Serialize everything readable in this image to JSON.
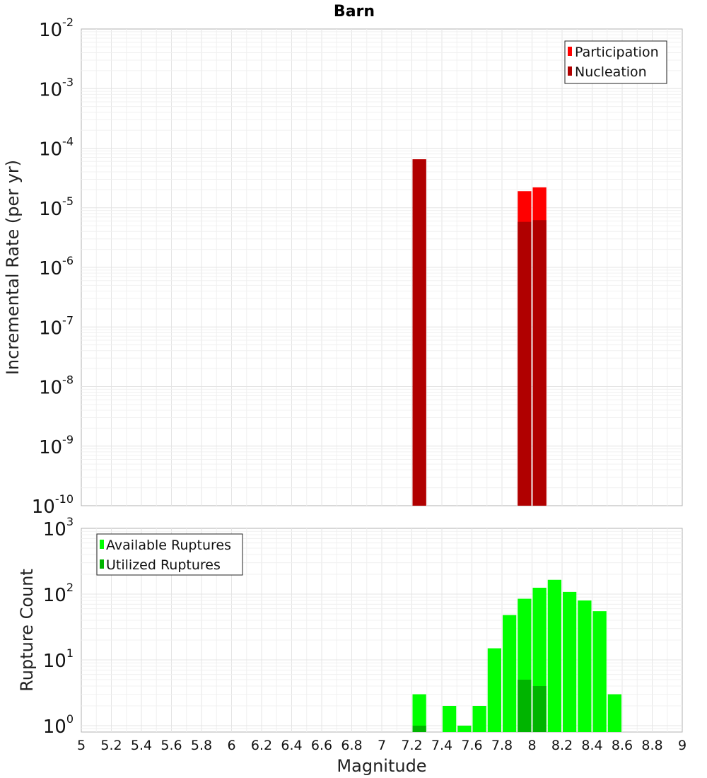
{
  "chart_data": [
    {
      "type": "bar",
      "title": "Barn",
      "xlabel": "",
      "ylabel": "Incremental Rate (per yr)",
      "yscale": "log",
      "ylim": [
        1e-10,
        0.01
      ],
      "xlim": [
        5,
        9
      ],
      "bar_width": 0.1,
      "ytick_exponents": [
        -10,
        -9,
        -8,
        -7,
        -6,
        -5,
        -4,
        -3,
        -2
      ],
      "legend_position": "top-right",
      "series": [
        {
          "name": "Participation",
          "color": "#ff0000",
          "x": [
            7.25,
            7.95,
            8.05
          ],
          "values": [
            6.5e-05,
            1.9e-05,
            2.2e-05
          ]
        },
        {
          "name": "Nucleation",
          "color": "#b00000",
          "x": [
            7.25,
            7.95,
            8.05
          ],
          "values": [
            6.5e-05,
            5.8e-06,
            6.2e-06
          ]
        }
      ]
    },
    {
      "type": "bar",
      "title": "",
      "xlabel": "Magnitude",
      "ylabel": "Rupture Count",
      "yscale": "log",
      "ylim": [
        0.8,
        1000
      ],
      "xlim": [
        5,
        9
      ],
      "bar_width": 0.1,
      "ytick_exponents": [
        0,
        1,
        2,
        3
      ],
      "xticks": [
        "5",
        "5.2",
        "5.4",
        "5.6",
        "5.8",
        "6",
        "6.2",
        "6.4",
        "6.6",
        "6.8",
        "7",
        "7.2",
        "7.4",
        "7.6",
        "7.8",
        "8",
        "8.2",
        "8.4",
        "8.6",
        "8.8",
        "9"
      ],
      "legend_position": "top-left",
      "series": [
        {
          "name": "Available Ruptures",
          "color": "#00ff00",
          "x": [
            7.25,
            7.45,
            7.55,
            7.65,
            7.75,
            7.85,
            7.95,
            8.05,
            8.15,
            8.25,
            8.35,
            8.45,
            8.55
          ],
          "values": [
            3,
            2,
            1,
            2,
            15,
            48,
            85,
            125,
            165,
            108,
            80,
            55,
            3
          ]
        },
        {
          "name": "Utilized Ruptures",
          "color": "#00b400",
          "x": [
            7.25,
            7.95,
            8.05
          ],
          "values": [
            1,
            5,
            4
          ]
        }
      ]
    }
  ]
}
